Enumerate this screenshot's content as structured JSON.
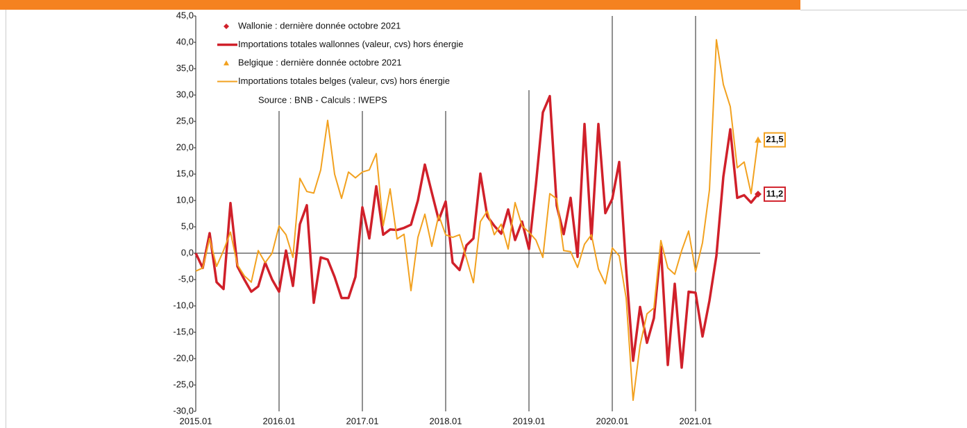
{
  "chart_data": {
    "type": "line",
    "source": "Source : BNB - Calculs : IWEPS",
    "categories": [
      "2015.01",
      null,
      null,
      null,
      null,
      null,
      null,
      null,
      null,
      null,
      null,
      null,
      "2016.01",
      null,
      null,
      null,
      null,
      null,
      null,
      null,
      null,
      null,
      null,
      null,
      "2017.01",
      null,
      null,
      null,
      null,
      null,
      null,
      null,
      null,
      null,
      null,
      null,
      "2018.01",
      null,
      null,
      null,
      null,
      null,
      null,
      null,
      null,
      null,
      null,
      null,
      "2019.01",
      null,
      null,
      null,
      null,
      null,
      null,
      null,
      null,
      null,
      null,
      null,
      "2020.01",
      null,
      null,
      null,
      null,
      null,
      null,
      null,
      null,
      null,
      null,
      null,
      "2021.01",
      null,
      null,
      null,
      null,
      null,
      null,
      null,
      null,
      null
    ],
    "series": [
      {
        "name": "Importations totales wallonnes (valeur, cvs) hors énergie",
        "last_marker_name": "Wallonie : dernière donnée octobre 2021",
        "marker": "diamond",
        "color": "#d0202a",
        "width": 3.5,
        "values": [
          0.0,
          -2.8,
          3.8,
          -5.5,
          -6.8,
          9.5,
          -2.5,
          -5.0,
          -7.3,
          -6.3,
          -1.8,
          -5.0,
          -7.3,
          0.5,
          -6.2,
          5.5,
          9.1,
          -9.4,
          -0.8,
          -1.2,
          -4.5,
          -8.5,
          -8.5,
          -4.5,
          8.7,
          2.8,
          12.7,
          3.5,
          4.5,
          4.4,
          4.8,
          5.4,
          10.0,
          16.8,
          11.5,
          6.3,
          9.8,
          -1.8,
          -3.2,
          1.5,
          2.8,
          15.1,
          7.0,
          5.2,
          3.7,
          8.3,
          2.5,
          6.0,
          0.8,
          13.0,
          26.7,
          29.8,
          9.0,
          3.6,
          10.5,
          -0.7,
          24.5,
          2.7,
          24.5,
          7.6,
          10.3,
          17.3,
          -3.0,
          -20.4,
          -10.2,
          -17.0,
          -12.3,
          1.2,
          -21.2,
          -5.8,
          -21.7,
          -7.3,
          -7.5,
          -15.8,
          -9.0,
          -0.5,
          14.5,
          23.5,
          10.5,
          11.0,
          9.6,
          11.2
        ],
        "value_labels": [
          null,
          null,
          null,
          null,
          null,
          null,
          null,
          null,
          null,
          null,
          null,
          null,
          null,
          null,
          null,
          null,
          null,
          null,
          null,
          null,
          null,
          null,
          null,
          null,
          null,
          null,
          null,
          null,
          null,
          null,
          null,
          null,
          null,
          null,
          null,
          null,
          null,
          null,
          null,
          null,
          null,
          null,
          null,
          null,
          null,
          null,
          null,
          null,
          null,
          null,
          null,
          null,
          null,
          null,
          null,
          null,
          null,
          null,
          null,
          null,
          null,
          null,
          null,
          null,
          null,
          null,
          null,
          null,
          null,
          null,
          null,
          null,
          null,
          null,
          null,
          null,
          null,
          null,
          null,
          null,
          null,
          "11,2"
        ]
      },
      {
        "name": "Importations totales belges (valeur, cvs) hors énergie",
        "last_marker_name": "Belgique : dernière donnée octobre 2021",
        "marker": "triangle",
        "color": "#f2a11f",
        "width": 2,
        "values": [
          -3.4,
          -2.8,
          2.8,
          -2.5,
          0.5,
          4.0,
          -2.2,
          -4.3,
          -5.5,
          0.5,
          -1.8,
          0.0,
          5.2,
          3.5,
          -0.8,
          14.2,
          11.7,
          11.4,
          15.8,
          25.2,
          15.0,
          10.4,
          15.4,
          14.3,
          15.4,
          15.8,
          18.9,
          5.2,
          12.2,
          2.7,
          3.6,
          -7.1,
          3.0,
          7.4,
          1.3,
          7.2,
          3.5,
          3.0,
          3.5,
          -1.0,
          -5.6,
          6.0,
          8.0,
          3.5,
          5.5,
          0.8,
          9.6,
          5.2,
          4.0,
          2.5,
          -0.8,
          11.3,
          10.3,
          0.5,
          0.3,
          -2.7,
          1.7,
          3.5,
          -3.0,
          -5.8,
          1.0,
          -0.5,
          -8.5,
          -27.9,
          -17.5,
          -11.5,
          -10.4,
          2.4,
          -2.8,
          -4.0,
          0.5,
          4.2,
          -3.5,
          2.0,
          12.0,
          40.5,
          32.0,
          27.8,
          16.2,
          17.3,
          11.3,
          21.5
        ],
        "value_labels": [
          null,
          null,
          null,
          null,
          null,
          null,
          null,
          null,
          null,
          null,
          null,
          null,
          null,
          null,
          null,
          null,
          null,
          null,
          null,
          null,
          null,
          null,
          null,
          null,
          null,
          null,
          null,
          null,
          null,
          null,
          null,
          null,
          null,
          null,
          null,
          null,
          null,
          null,
          null,
          null,
          null,
          null,
          null,
          null,
          null,
          null,
          null,
          null,
          null,
          null,
          null,
          null,
          null,
          null,
          null,
          null,
          null,
          null,
          null,
          null,
          null,
          null,
          null,
          null,
          null,
          null,
          null,
          null,
          null,
          null,
          null,
          null,
          null,
          null,
          null,
          null,
          null,
          null,
          null,
          null,
          null,
          "21,5"
        ]
      }
    ],
    "ylim": [
      -30,
      45
    ],
    "yticks": [
      {
        "value": -30,
        "label": "-30,0"
      },
      {
        "value": -25,
        "label": "-25,0"
      },
      {
        "value": -20,
        "label": "-20,0"
      },
      {
        "value": -15,
        "label": "-15,0"
      },
      {
        "value": -10,
        "label": "-10,0"
      },
      {
        "value": -5,
        "label": "-5,0"
      },
      {
        "value": 0,
        "label": "0,0"
      },
      {
        "value": 5,
        "label": "5,0"
      },
      {
        "value": 10,
        "label": "10,0"
      },
      {
        "value": 15,
        "label": "15,0"
      },
      {
        "value": 20,
        "label": "20,0"
      },
      {
        "value": 25,
        "label": "25,0"
      },
      {
        "value": 30,
        "label": "30,0"
      },
      {
        "value": 35,
        "label": "35,0"
      },
      {
        "value": 40,
        "label": "40,0"
      },
      {
        "value": 45,
        "label": "45,0"
      }
    ],
    "grid": false
  }
}
